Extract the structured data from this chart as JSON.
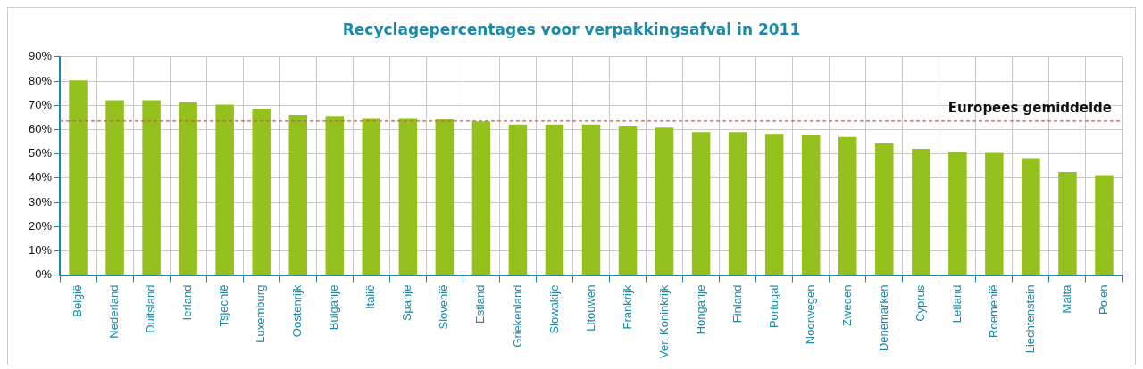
{
  "chart_data": {
    "type": "bar",
    "title": "Recyclagepercentages voor verpakkingsafval in 2011",
    "categories": [
      "België",
      "Nederland",
      "Duitsland",
      "Ierland",
      "Tsjechië",
      "Luxemburg",
      "Oostenrijk",
      "Bulgarije",
      "Italië",
      "Spanje",
      "Slovenië",
      "Estland",
      "Griekenland",
      "Slowakije",
      "Litouwen",
      "Frankrijk",
      "Ver. Koninkrijk",
      "Hongarije",
      "Finland",
      "Portugal",
      "Noorwegen",
      "Zweden",
      "Denemarken",
      "Cyprus",
      "Letland",
      "Roemenië",
      "Liechtenstein",
      "Malta",
      "Polen"
    ],
    "values": [
      80.3,
      72.1,
      72.1,
      71.2,
      70.3,
      68.6,
      66.0,
      65.6,
      64.7,
      64.7,
      64.3,
      63.4,
      62.1,
      62.1,
      62.1,
      61.6,
      60.8,
      59.0,
      59.0,
      58.2,
      57.7,
      56.9,
      54.3,
      52.1,
      50.8,
      50.4,
      48.2,
      42.5,
      41.2
    ],
    "color": "#95c11f",
    "ylim": [
      0,
      90
    ],
    "yticks": [
      {
        "value": 0,
        "label": "0%"
      },
      {
        "value": 10,
        "label": "10%"
      },
      {
        "value": 20,
        "label": "20%"
      },
      {
        "value": 30,
        "label": "30%"
      },
      {
        "value": 40,
        "label": "40%"
      },
      {
        "value": 50,
        "label": "50%"
      },
      {
        "value": 60,
        "label": "60%"
      },
      {
        "value": 70,
        "label": "70%"
      },
      {
        "value": 80,
        "label": "80%"
      },
      {
        "value": 90,
        "label": "90%"
      }
    ],
    "ref_lines": [
      {
        "axis": "y",
        "value": 63.5,
        "label": "Europees gemiddelde",
        "color": "#d9534f",
        "line_style": "dashed"
      }
    ],
    "grid": true,
    "legend": false
  }
}
